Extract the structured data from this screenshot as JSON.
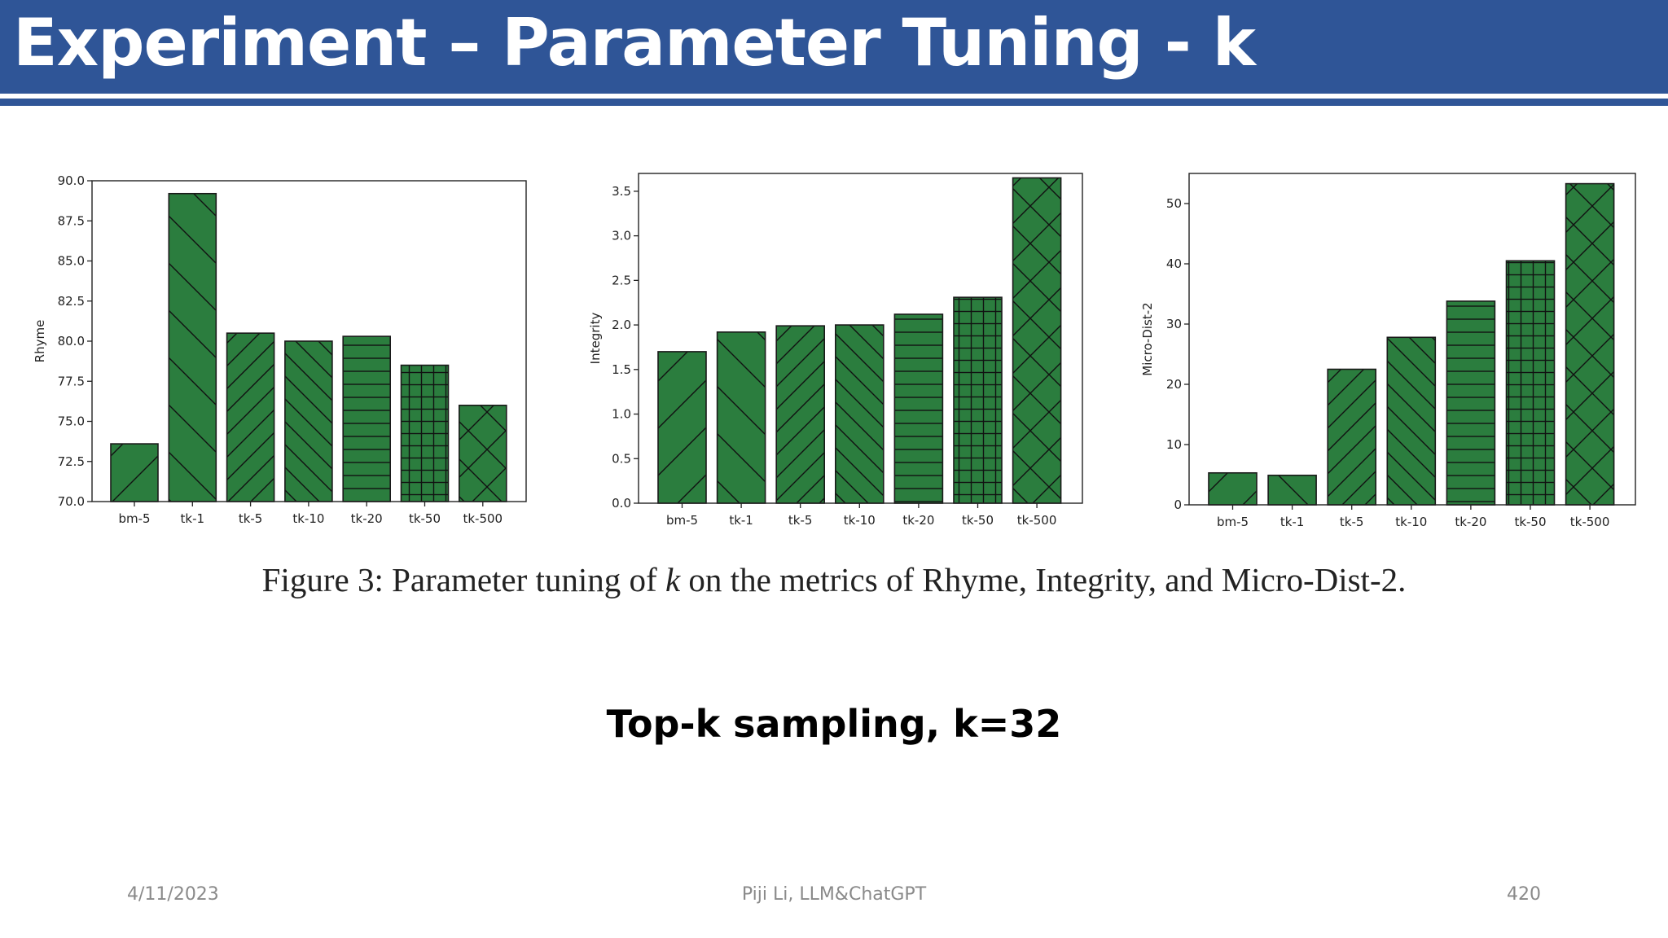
{
  "slide": {
    "title": "Experiment – Parameter Tuning - k",
    "caption": "Figure 3: Parameter tuning of k on the metrics of Rhyme, Integrity, and Micro-Dist-2.",
    "caption_prefix": "Figure 3: Parameter tuning of ",
    "caption_var": "k",
    "caption_suffix": " on the metrics of Rhyme, Integrity, and Micro-Dist-2.",
    "subtitle": "Top-k sampling, k=32",
    "footer": {
      "date": "4/11/2023",
      "center": "Piji Li, LLM&ChatGPT",
      "page": "420"
    }
  },
  "colors": {
    "title_bar": "#2f5597",
    "bar_fill": "#2b7d3e",
    "bar_edge": "#1a1a1a"
  },
  "chart_data": [
    {
      "type": "bar",
      "title": "",
      "xlabel": "",
      "ylabel": "Rhyme",
      "ylim": [
        70,
        90
      ],
      "yticks": [
        70.0,
        72.5,
        75.0,
        77.5,
        80.0,
        82.5,
        85.0,
        87.5,
        90.0
      ],
      "ytick_labels": [
        "70.0",
        "72.5",
        "75.0",
        "77.5",
        "80.0",
        "82.5",
        "85.0",
        "87.5",
        "90.0"
      ],
      "categories": [
        "bm-5",
        "tk-1",
        "tk-5",
        "tk-10",
        "tk-20",
        "tk-50",
        "tk-500"
      ],
      "values": [
        73.6,
        89.2,
        80.5,
        80.0,
        80.3,
        78.5,
        76.0
      ],
      "hatches": [
        "/",
        "\\",
        "//",
        "\\\\",
        "-",
        "+",
        "x"
      ],
      "grid": false
    },
    {
      "type": "bar",
      "title": "",
      "xlabel": "",
      "ylabel": "Integrity",
      "ylim": [
        0,
        3.7
      ],
      "yticks": [
        0.0,
        0.5,
        1.0,
        1.5,
        2.0,
        2.5,
        3.0,
        3.5
      ],
      "ytick_labels": [
        "0.0",
        "0.5",
        "1.0",
        "1.5",
        "2.0",
        "2.5",
        "3.0",
        "3.5"
      ],
      "categories": [
        "bm-5",
        "tk-1",
        "tk-5",
        "tk-10",
        "tk-20",
        "tk-50",
        "tk-500"
      ],
      "values": [
        1.7,
        1.92,
        1.99,
        2.0,
        2.12,
        2.31,
        3.65
      ],
      "hatches": [
        "/",
        "\\",
        "//",
        "\\\\",
        "-",
        "+",
        "x"
      ],
      "grid": false
    },
    {
      "type": "bar",
      "title": "",
      "xlabel": "",
      "ylabel": "Micro-Dist-2",
      "ylim": [
        0,
        55
      ],
      "yticks": [
        0,
        10,
        20,
        30,
        40,
        50
      ],
      "ytick_labels": [
        "0",
        "10",
        "20",
        "30",
        "40",
        "50"
      ],
      "categories": [
        "bm-5",
        "tk-1",
        "tk-5",
        "tk-10",
        "tk-20",
        "tk-50",
        "tk-500"
      ],
      "values": [
        5.3,
        4.9,
        22.5,
        27.8,
        33.8,
        40.5,
        53.3
      ],
      "hatches": [
        "/",
        "\\",
        "//",
        "\\\\",
        "-",
        "+",
        "x"
      ],
      "grid": false
    }
  ]
}
